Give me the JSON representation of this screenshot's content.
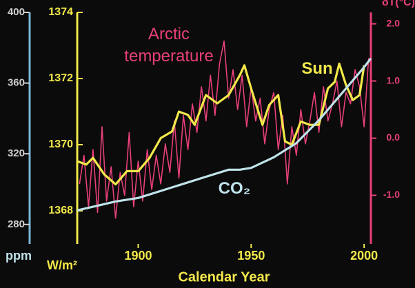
{
  "chart_data": {
    "type": "line",
    "xlabel": "Calendar Year",
    "xlim": [
      1873,
      2003
    ],
    "xticks": [
      1900,
      1950,
      2000
    ],
    "ylabel": "W/m²",
    "ylim": [
      1367,
      1374
    ],
    "yticks": [
      1368,
      1370,
      1372,
      1374
    ],
    "y2label": "δT(°C)",
    "y2lim": [
      -1.85,
      2.2
    ],
    "y2ticks": [
      {
        "value": -1,
        "label": "-1.0"
      },
      {
        "value": 0,
        "label": "0.0"
      },
      {
        "value": 1,
        "label": "1.0"
      },
      {
        "value": 2,
        "label": "2.0"
      }
    ],
    "y3label": "ppm",
    "y3lim": [
      269,
      400
    ],
    "y3ticks": [
      280,
      320,
      360,
      400
    ],
    "series": [
      {
        "name": "Arctic temperature",
        "color": "#e8407a",
        "axis": "y2",
        "x": [
          1874,
          1876,
          1878,
          1880,
          1882,
          1884,
          1886,
          1888,
          1890,
          1892,
          1894,
          1896,
          1898,
          1900,
          1902,
          1904,
          1906,
          1908,
          1910,
          1912,
          1914,
          1916,
          1918,
          1920,
          1922,
          1924,
          1926,
          1928,
          1930,
          1932,
          1934,
          1936,
          1938,
          1940,
          1942,
          1944,
          1946,
          1948,
          1950,
          1952,
          1954,
          1956,
          1958,
          1960,
          1962,
          1964,
          1966,
          1968,
          1970,
          1972,
          1974,
          1976,
          1978,
          1980,
          1982,
          1984,
          1986,
          1988,
          1990,
          1992,
          1994,
          1996,
          1998,
          2000,
          2002
        ],
        "values": [
          -0.8,
          -0.3,
          -1.2,
          -0.2,
          -1.3,
          0.2,
          -1.1,
          -0.5,
          -1.4,
          -0.6,
          -1.0,
          0.1,
          -1.2,
          -0.4,
          -1.1,
          -0.2,
          -0.9,
          -0.3,
          -0.8,
          -0.1,
          -0.6,
          0.3,
          -0.7,
          0.4,
          -0.2,
          0.6,
          0.1,
          0.9,
          0.3,
          1.1,
          0.4,
          1.3,
          1.7,
          0.7,
          1.2,
          0.5,
          1.1,
          0.2,
          0.9,
          0.3,
          0.7,
          -0.1,
          0.5,
          0.8,
          -0.2,
          0.4,
          -0.8,
          0.2,
          -0.3,
          0.5,
          -0.1,
          0.3,
          0.8,
          0.1,
          0.9,
          0.3,
          0.6,
          1.0,
          0.2,
          0.8,
          0.6,
          1.2,
          0.9,
          0.2,
          1.4
        ]
      },
      {
        "name": "Sun",
        "color": "#f2e84a",
        "axis": "y",
        "x": [
          1873,
          1877,
          1880,
          1885,
          1890,
          1895,
          1900,
          1905,
          1910,
          1915,
          1918,
          1922,
          1925,
          1930,
          1935,
          1940,
          1945,
          1947,
          1950,
          1955,
          1958,
          1962,
          1965,
          1968,
          1972,
          1976,
          1980,
          1984,
          1987,
          1989,
          1992,
          1995,
          1998,
          2000
        ],
        "values": [
          1369.5,
          1369.4,
          1369.6,
          1369.1,
          1368.8,
          1369.2,
          1369.2,
          1369.6,
          1370.2,
          1370.4,
          1371.0,
          1370.9,
          1370.6,
          1371.5,
          1371.25,
          1371.5,
          1372.1,
          1372.4,
          1371.7,
          1370.6,
          1371.2,
          1371.5,
          1370.1,
          1370.0,
          1370.7,
          1370.6,
          1370.6,
          1371.7,
          1371.9,
          1372.45,
          1371.8,
          1371.35,
          1371.5,
          1372.4
        ]
      },
      {
        "name": "CO₂",
        "color": "#bfe3ea",
        "axis": "y3",
        "x": [
          1873,
          1880,
          1890,
          1900,
          1910,
          1920,
          1930,
          1940,
          1945,
          1950,
          1960,
          1970,
          1980,
          1990,
          2000,
          2003
        ],
        "values": [
          288,
          290,
          293,
          295,
          299,
          303,
          307,
          311,
          311,
          312,
          318,
          326,
          339,
          354,
          369,
          374
        ]
      }
    ]
  }
}
